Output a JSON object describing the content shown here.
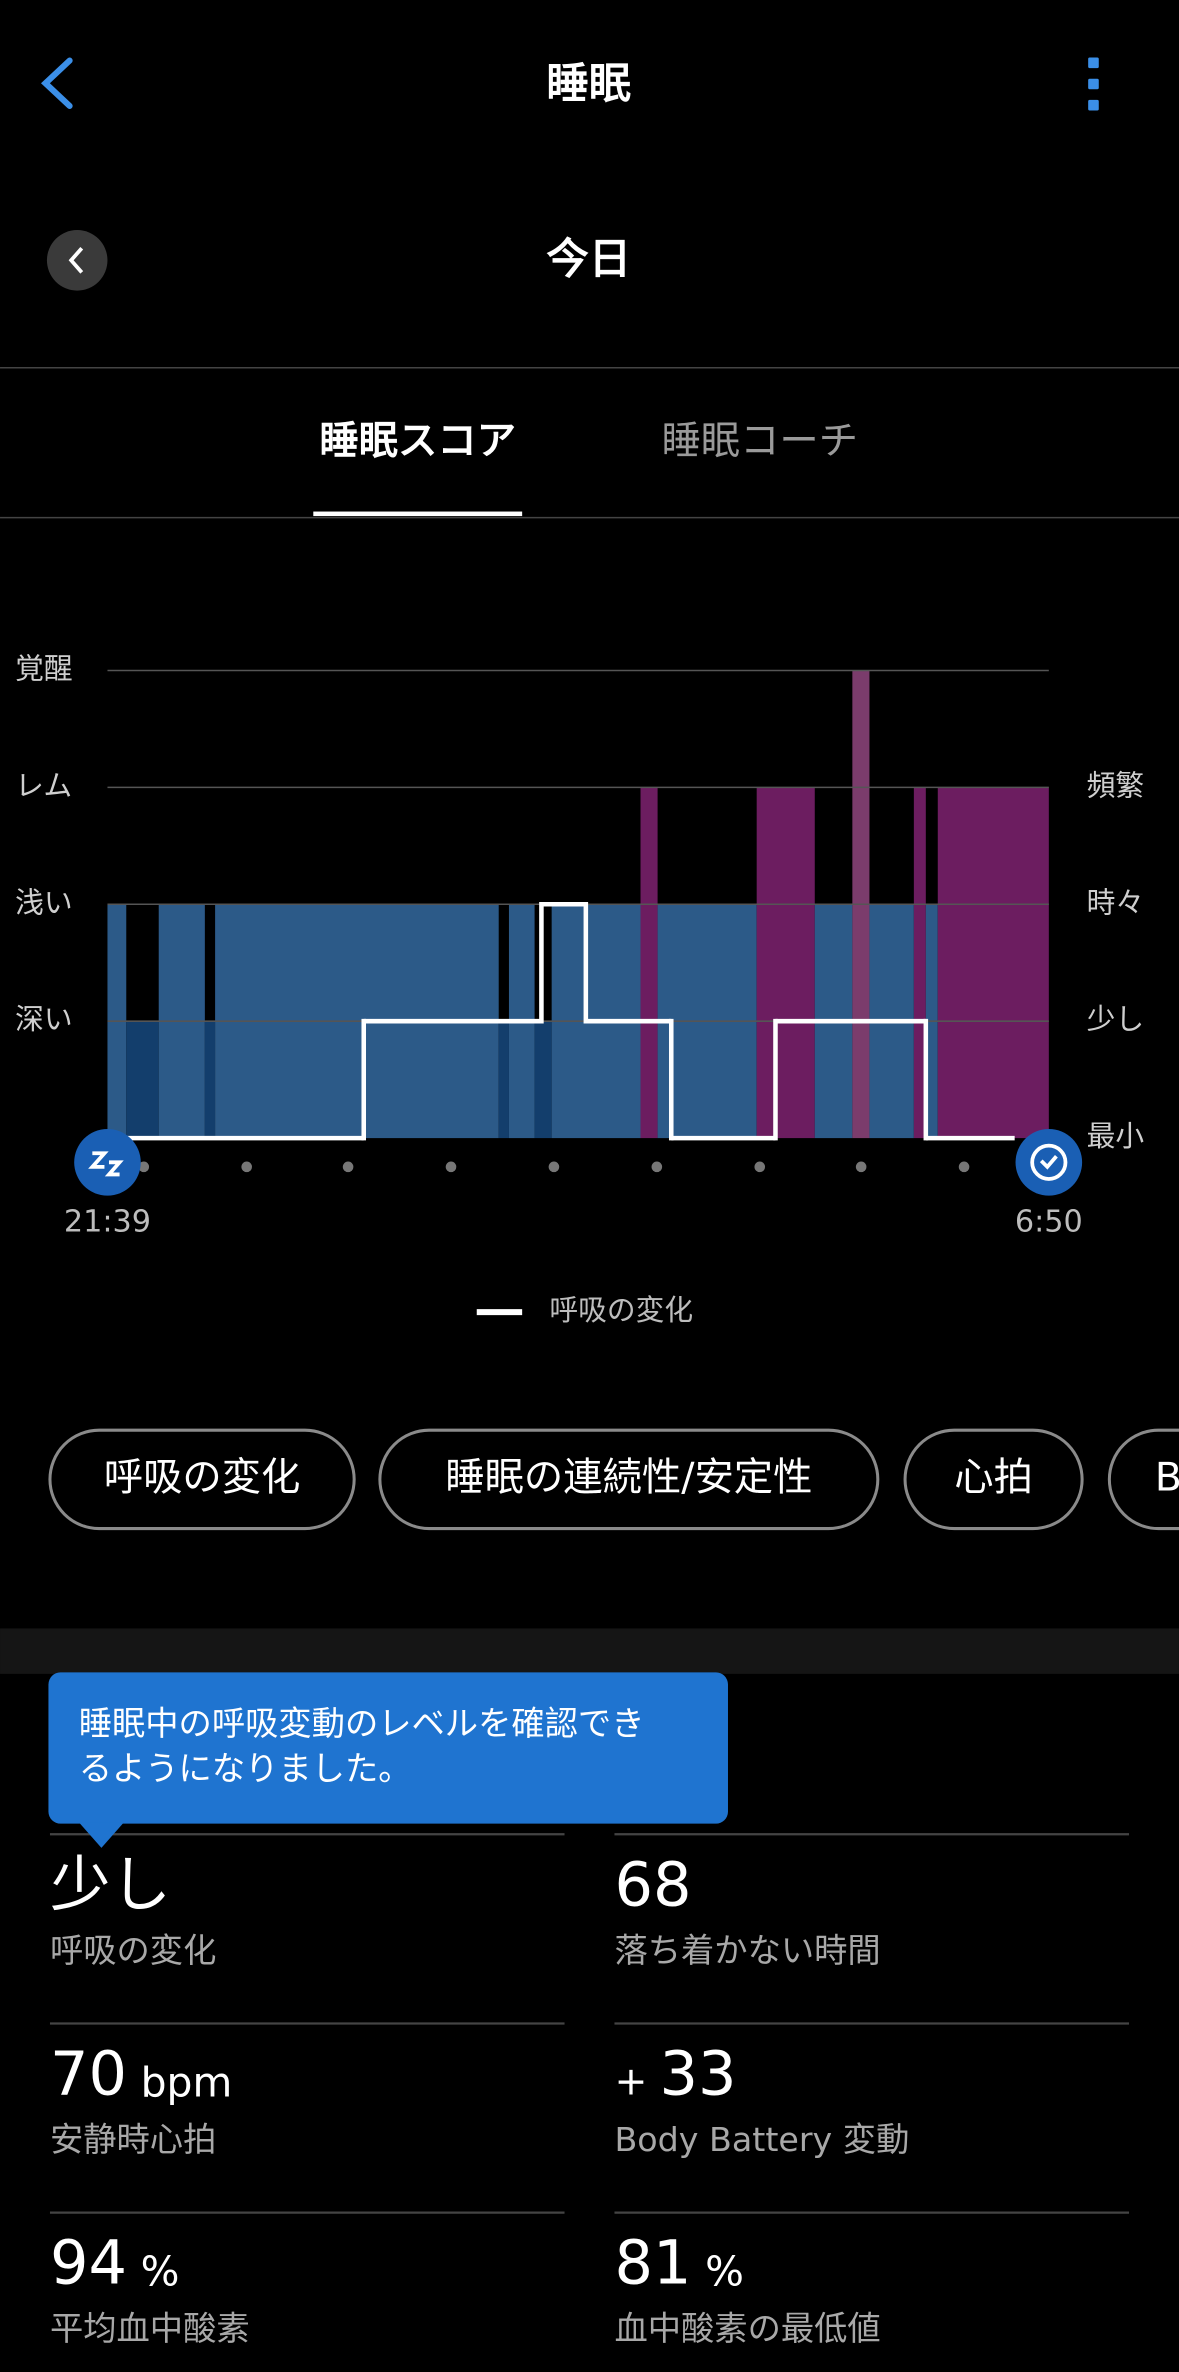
{
  "header": {
    "title": "睡眠",
    "date": "今日"
  },
  "tabs": [
    "睡眠スコア",
    "睡眠コーチ"
  ],
  "chart_data": {
    "type": "sleep-stages",
    "xlim": [
      0,
      551
    ],
    "x_start_label": "21:39",
    "x_end_label": "6:50",
    "ylim": [
      0,
      4
    ],
    "yticks": [
      {
        "value": 4,
        "label": "覚醒"
      },
      {
        "value": 3,
        "label": "レム"
      },
      {
        "value": 2,
        "label": "浅い"
      },
      {
        "value": 1,
        "label": "深い"
      }
    ],
    "y2lim": [
      0,
      4
    ],
    "y2ticks": [
      {
        "value": 3,
        "label": "頻繁"
      },
      {
        "value": 2,
        "label": "時々"
      },
      {
        "value": 1,
        "label": "少し"
      },
      {
        "value": 0,
        "label": "最小"
      }
    ],
    "grid": true,
    "stage_colors": {
      "1": "#133e6c",
      "2": "#2c5a88",
      "3": "#6c1d60",
      "4": "#7b3c6c"
    },
    "stages": {
      "start": [
        0,
        11,
        30,
        57,
        63,
        229,
        235,
        250,
        260,
        312,
        322,
        380,
        414,
        436,
        446,
        472,
        479,
        486
      ],
      "end": [
        11,
        30,
        57,
        63,
        229,
        235,
        250,
        260,
        312,
        322,
        380,
        414,
        436,
        446,
        472,
        479,
        486,
        551
      ],
      "values": [
        2,
        1,
        2,
        1,
        2,
        1,
        2,
        1,
        2,
        3,
        2,
        3,
        2,
        4,
        2,
        3,
        2,
        3
      ]
    },
    "series": [
      {
        "name": "呼吸の変化",
        "color": "#ffffff",
        "axis": "y2",
        "start": [
          0,
          150,
          254,
          280,
          330,
          391,
          479
        ],
        "end": [
          150,
          254,
          280,
          330,
          391,
          479,
          531
        ],
        "values": [
          0,
          1,
          2,
          1,
          0,
          1,
          0
        ]
      }
    ]
  },
  "chips": [
    "呼吸の変化",
    "睡眠の連続性/安定性",
    "心拍",
    "B"
  ],
  "tooltip": [
    "睡眠中の呼吸変動のレベルを確認でき",
    "るようになりました。"
  ],
  "metrics": [
    {
      "value": "少し",
      "label": "呼吸の変化"
    },
    {
      "value": 68,
      "label": "落ち着かない時間"
    },
    {
      "value": 70,
      "unit": "bpm",
      "label": "安静時心拍"
    },
    {
      "sign": "+",
      "value": 33,
      "label": "Body Battery 変動"
    },
    {
      "value": 94,
      "unit": "%",
      "label": "平均血中酸素"
    },
    {
      "value": 81,
      "unit": "%",
      "label": "血中酸素の最低値"
    }
  ]
}
